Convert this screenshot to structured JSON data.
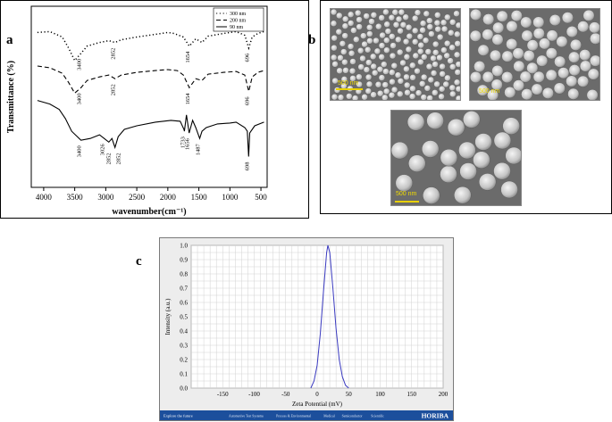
{
  "panel_labels": {
    "a": "a",
    "b": "b",
    "c": "c"
  },
  "chart_data": [
    {
      "panel": "a",
      "type": "line",
      "xlabel": "wavenumber(cm⁻¹)",
      "ylabel": "Transmittance (%)",
      "xlim": [
        4200,
        400
      ],
      "x_reversed": true,
      "xticks": [
        4000,
        3500,
        3000,
        2500,
        2000,
        1500,
        1000,
        500
      ],
      "legend": {
        "placement": "top-right",
        "entries": [
          "300 nm",
          "200 nm",
          "90 nm"
        ]
      },
      "series": [
        {
          "name": "300 nm",
          "style": "dotted",
          "points": [
            [
              4100,
              0.855
            ],
            [
              3900,
              0.86
            ],
            [
              3700,
              0.83
            ],
            [
              3600,
              0.77
            ],
            [
              3500,
              0.7
            ],
            [
              3400,
              0.74
            ],
            [
              3300,
              0.78
            ],
            [
              3100,
              0.8
            ],
            [
              2950,
              0.81
            ],
            [
              2852,
              0.8
            ],
            [
              2750,
              0.815
            ],
            [
              2500,
              0.83
            ],
            [
              2200,
              0.845
            ],
            [
              2000,
              0.855
            ],
            [
              1900,
              0.85
            ],
            [
              1750,
              0.83
            ],
            [
              1654,
              0.78
            ],
            [
              1550,
              0.82
            ],
            [
              1450,
              0.8
            ],
            [
              1350,
              0.835
            ],
            [
              1100,
              0.85
            ],
            [
              900,
              0.86
            ],
            [
              760,
              0.84
            ],
            [
              696,
              0.77
            ],
            [
              640,
              0.83
            ],
            [
              550,
              0.85
            ],
            [
              450,
              0.86
            ]
          ],
          "annotations": [
            {
              "x": 3400,
              "label": "3400"
            },
            {
              "x": 2852,
              "label": "2852"
            },
            {
              "x": 1654,
              "label": "1654"
            },
            {
              "x": 696,
              "label": "696"
            }
          ]
        },
        {
          "name": "200 nm",
          "style": "dashed",
          "points": [
            [
              4100,
              0.67
            ],
            [
              3900,
              0.66
            ],
            [
              3700,
              0.63
            ],
            [
              3600,
              0.58
            ],
            [
              3500,
              0.52
            ],
            [
              3400,
              0.55
            ],
            [
              3300,
              0.59
            ],
            [
              3100,
              0.61
            ],
            [
              2950,
              0.62
            ],
            [
              2852,
              0.6
            ],
            [
              2750,
              0.62
            ],
            [
              2500,
              0.635
            ],
            [
              2200,
              0.645
            ],
            [
              2000,
              0.65
            ],
            [
              1850,
              0.645
            ],
            [
              1750,
              0.62
            ],
            [
              1654,
              0.55
            ],
            [
              1550,
              0.6
            ],
            [
              1450,
              0.59
            ],
            [
              1350,
              0.625
            ],
            [
              1100,
              0.635
            ],
            [
              900,
              0.64
            ],
            [
              760,
              0.62
            ],
            [
              696,
              0.53
            ],
            [
              640,
              0.61
            ],
            [
              550,
              0.635
            ],
            [
              450,
              0.645
            ]
          ],
          "annotations": [
            {
              "x": 3400,
              "label": "3400"
            },
            {
              "x": 2852,
              "label": "2852"
            },
            {
              "x": 1654,
              "label": "1654"
            },
            {
              "x": 696,
              "label": "696"
            }
          ]
        },
        {
          "name": "90 nm",
          "style": "solid",
          "points": [
            [
              4100,
              0.48
            ],
            [
              3900,
              0.46
            ],
            [
              3750,
              0.43
            ],
            [
              3650,
              0.38
            ],
            [
              3550,
              0.31
            ],
            [
              3400,
              0.26
            ],
            [
              3250,
              0.27
            ],
            [
              3100,
              0.29
            ],
            [
              3026,
              0.27
            ],
            [
              2950,
              0.25
            ],
            [
              2900,
              0.27
            ],
            [
              2852,
              0.22
            ],
            [
              2800,
              0.28
            ],
            [
              2700,
              0.32
            ],
            [
              2500,
              0.34
            ],
            [
              2200,
              0.36
            ],
            [
              1950,
              0.37
            ],
            [
              1800,
              0.365
            ],
            [
              1740,
              0.32
            ],
            [
              1733,
              0.31
            ],
            [
              1700,
              0.4
            ],
            [
              1656,
              0.3
            ],
            [
              1600,
              0.37
            ],
            [
              1550,
              0.33
            ],
            [
              1487,
              0.27
            ],
            [
              1450,
              0.31
            ],
            [
              1380,
              0.33
            ],
            [
              1200,
              0.35
            ],
            [
              1000,
              0.355
            ],
            [
              900,
              0.36
            ],
            [
              760,
              0.33
            ],
            [
              720,
              0.31
            ],
            [
              698,
              0.17
            ],
            [
              680,
              0.3
            ],
            [
              600,
              0.34
            ],
            [
              450,
              0.36
            ]
          ],
          "annotations": [
            {
              "x": 3400,
              "label": "3400"
            },
            {
              "x": 3026,
              "label": "3026"
            },
            {
              "x": 2852,
              "label": "2852"
            },
            {
              "x": 2852,
              "label": "2852"
            },
            {
              "x": 1733,
              "label": "1733"
            },
            {
              "x": 1656,
              "label": "1656"
            },
            {
              "x": 1487,
              "label": "1487"
            },
            {
              "x": 698,
              "label": "698"
            }
          ]
        }
      ]
    },
    {
      "panel": "c",
      "type": "line",
      "xlabel": "Zeta Potential (mV)",
      "ylabel": "Intensity (a.u.)",
      "xlim": [
        -200,
        200
      ],
      "ylim": [
        0,
        1.0
      ],
      "xticks": [
        -150,
        -100,
        -50,
        0,
        50,
        100,
        150,
        200
      ],
      "yticks": [
        0.0,
        0.1,
        0.2,
        0.3,
        0.4,
        0.5,
        0.6,
        0.7,
        0.8,
        0.9,
        1.0
      ],
      "grid": true,
      "series": [
        {
          "name": "",
          "color": "#3a3ac0",
          "points": [
            [
              -10,
              0.0
            ],
            [
              -5,
              0.05
            ],
            [
              0,
              0.16
            ],
            [
              5,
              0.38
            ],
            [
              10,
              0.68
            ],
            [
              15,
              0.95
            ],
            [
              17,
              1.0
            ],
            [
              20,
              0.95
            ],
            [
              25,
              0.7
            ],
            [
              30,
              0.42
            ],
            [
              35,
              0.2
            ],
            [
              40,
              0.08
            ],
            [
              45,
              0.02
            ],
            [
              50,
              0.0
            ]
          ]
        }
      ],
      "footer": {
        "tagline": "Explore the future",
        "links": [
          "Automotive Test Systems",
          "Process & Environmental",
          "Medical",
          "Semiconductor",
          "Scientific"
        ],
        "brand": "HORIBA"
      }
    }
  ],
  "sem_images": [
    {
      "scale_label": "500 nm"
    },
    {
      "scale_label": "500 nm"
    },
    {
      "scale_label": "500 nm"
    }
  ]
}
